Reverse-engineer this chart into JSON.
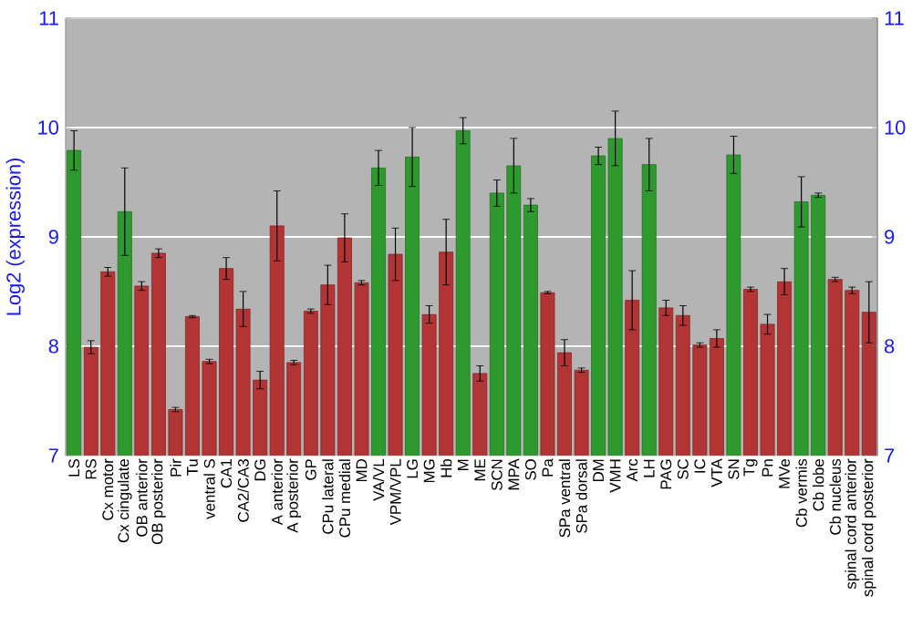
{
  "chart_data": {
    "type": "bar",
    "ylabel": "Log2 (expression)",
    "categories": [
      "LS",
      "RS",
      "Cx motor",
      "Cx cingulate",
      "OB anterior",
      "OB posterior",
      "Pir",
      "Tu",
      "ventral S",
      "CA1",
      "CA2/CA3",
      "DG",
      "A anterior",
      "A posterior",
      "GP",
      "CPu lateral",
      "CPu medial",
      "MD",
      "VA/VL",
      "VPM/VPL",
      "LG",
      "MG",
      "Hb",
      "M",
      "ME",
      "SCN",
      "MPA",
      "SO",
      "Pa",
      "SPa ventral",
      "SPa dorsal",
      "DM",
      "VMH",
      "Arc",
      "LH",
      "PAG",
      "SC",
      "IC",
      "VTA",
      "SN",
      "Tg",
      "Pn",
      "MVe",
      "Cb vermis",
      "Cb lobe",
      "Cb nucleus",
      "spinal cord anterior",
      "spinal cord posterior"
    ],
    "values": [
      9.79,
      7.99,
      8.68,
      9.23,
      8.55,
      8.85,
      7.42,
      8.27,
      7.86,
      8.71,
      8.34,
      7.69,
      9.1,
      7.85,
      8.32,
      8.56,
      8.99,
      8.58,
      9.63,
      8.84,
      9.73,
      8.29,
      8.86,
      9.97,
      7.75,
      9.4,
      9.65,
      9.29,
      8.49,
      7.94,
      7.78,
      9.74,
      9.9,
      8.42,
      9.66,
      8.35,
      8.28,
      8.01,
      8.07,
      9.75,
      8.52,
      8.2,
      8.59,
      9.32,
      9.38,
      8.61,
      8.51,
      8.31
    ],
    "errors": [
      0.18,
      0.06,
      0.04,
      0.4,
      0.04,
      0.04,
      0.02,
      0.01,
      0.02,
      0.1,
      0.16,
      0.08,
      0.32,
      0.02,
      0.02,
      0.18,
      0.22,
      0.02,
      0.16,
      0.24,
      0.27,
      0.08,
      0.3,
      0.12,
      0.07,
      0.12,
      0.25,
      0.06,
      0.01,
      0.12,
      0.02,
      0.08,
      0.25,
      0.27,
      0.24,
      0.07,
      0.09,
      0.02,
      0.08,
      0.17,
      0.02,
      0.09,
      0.12,
      0.23,
      0.02,
      0.02,
      0.03,
      0.28
    ],
    "colors": [
      "#2e9a2e",
      "#b23434",
      "#b23434",
      "#2e9a2e",
      "#b23434",
      "#b23434",
      "#b23434",
      "#b23434",
      "#b23434",
      "#b23434",
      "#b23434",
      "#b23434",
      "#b23434",
      "#b23434",
      "#b23434",
      "#b23434",
      "#b23434",
      "#b23434",
      "#2e9a2e",
      "#b23434",
      "#2e9a2e",
      "#b23434",
      "#b23434",
      "#2e9a2e",
      "#b23434",
      "#2e9a2e",
      "#2e9a2e",
      "#2e9a2e",
      "#b23434",
      "#b23434",
      "#b23434",
      "#2e9a2e",
      "#2e9a2e",
      "#b23434",
      "#2e9a2e",
      "#b23434",
      "#b23434",
      "#b23434",
      "#b23434",
      "#2e9a2e",
      "#b23434",
      "#b23434",
      "#b23434",
      "#2e9a2e",
      "#2e9a2e",
      "#b23434",
      "#b23434",
      "#b23434"
    ],
    "ylim": [
      7,
      11
    ],
    "yticks": [
      7,
      8,
      9,
      10,
      11
    ],
    "y2lim": [
      7,
      11
    ],
    "y2ticks": [
      7,
      8,
      9,
      10,
      11
    ],
    "grid": "y"
  }
}
